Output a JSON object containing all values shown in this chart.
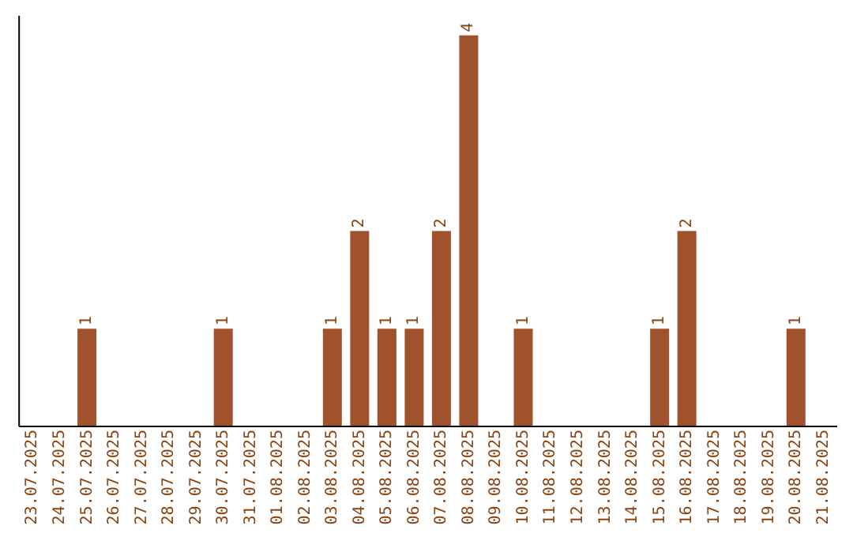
{
  "chart_data": {
    "type": "bar",
    "categories": [
      "23.07.2025",
      "24.07.2025",
      "25.07.2025",
      "26.07.2025",
      "27.07.2025",
      "28.07.2025",
      "29.07.2025",
      "30.07.2025",
      "31.07.2025",
      "01.08.2025",
      "02.08.2025",
      "03.08.2025",
      "04.08.2025",
      "05.08.2025",
      "06.08.2025",
      "07.08.2025",
      "08.08.2025",
      "09.08.2025",
      "10.08.2025",
      "11.08.2025",
      "12.08.2025",
      "13.08.2025",
      "14.08.2025",
      "15.08.2025",
      "16.08.2025",
      "17.08.2025",
      "18.08.2025",
      "19.08.2025",
      "20.08.2025",
      "21.08.2025"
    ],
    "values": [
      0,
      0,
      1,
      0,
      0,
      0,
      0,
      1,
      0,
      0,
      0,
      1,
      2,
      1,
      1,
      2,
      4,
      0,
      1,
      0,
      0,
      0,
      0,
      1,
      2,
      0,
      0,
      0,
      1,
      0
    ],
    "value_labels": [
      null,
      null,
      "1",
      null,
      null,
      null,
      null,
      "1",
      null,
      null,
      null,
      "1",
      "2",
      "1",
      "1",
      "2",
      "4",
      null,
      "1",
      null,
      null,
      null,
      null,
      "1",
      "2",
      null,
      null,
      null,
      "1",
      null
    ],
    "color": "#a0522d",
    "ylim": [
      0,
      4.2
    ],
    "tick_labels": "x",
    "grid": false,
    "legend": false
  }
}
